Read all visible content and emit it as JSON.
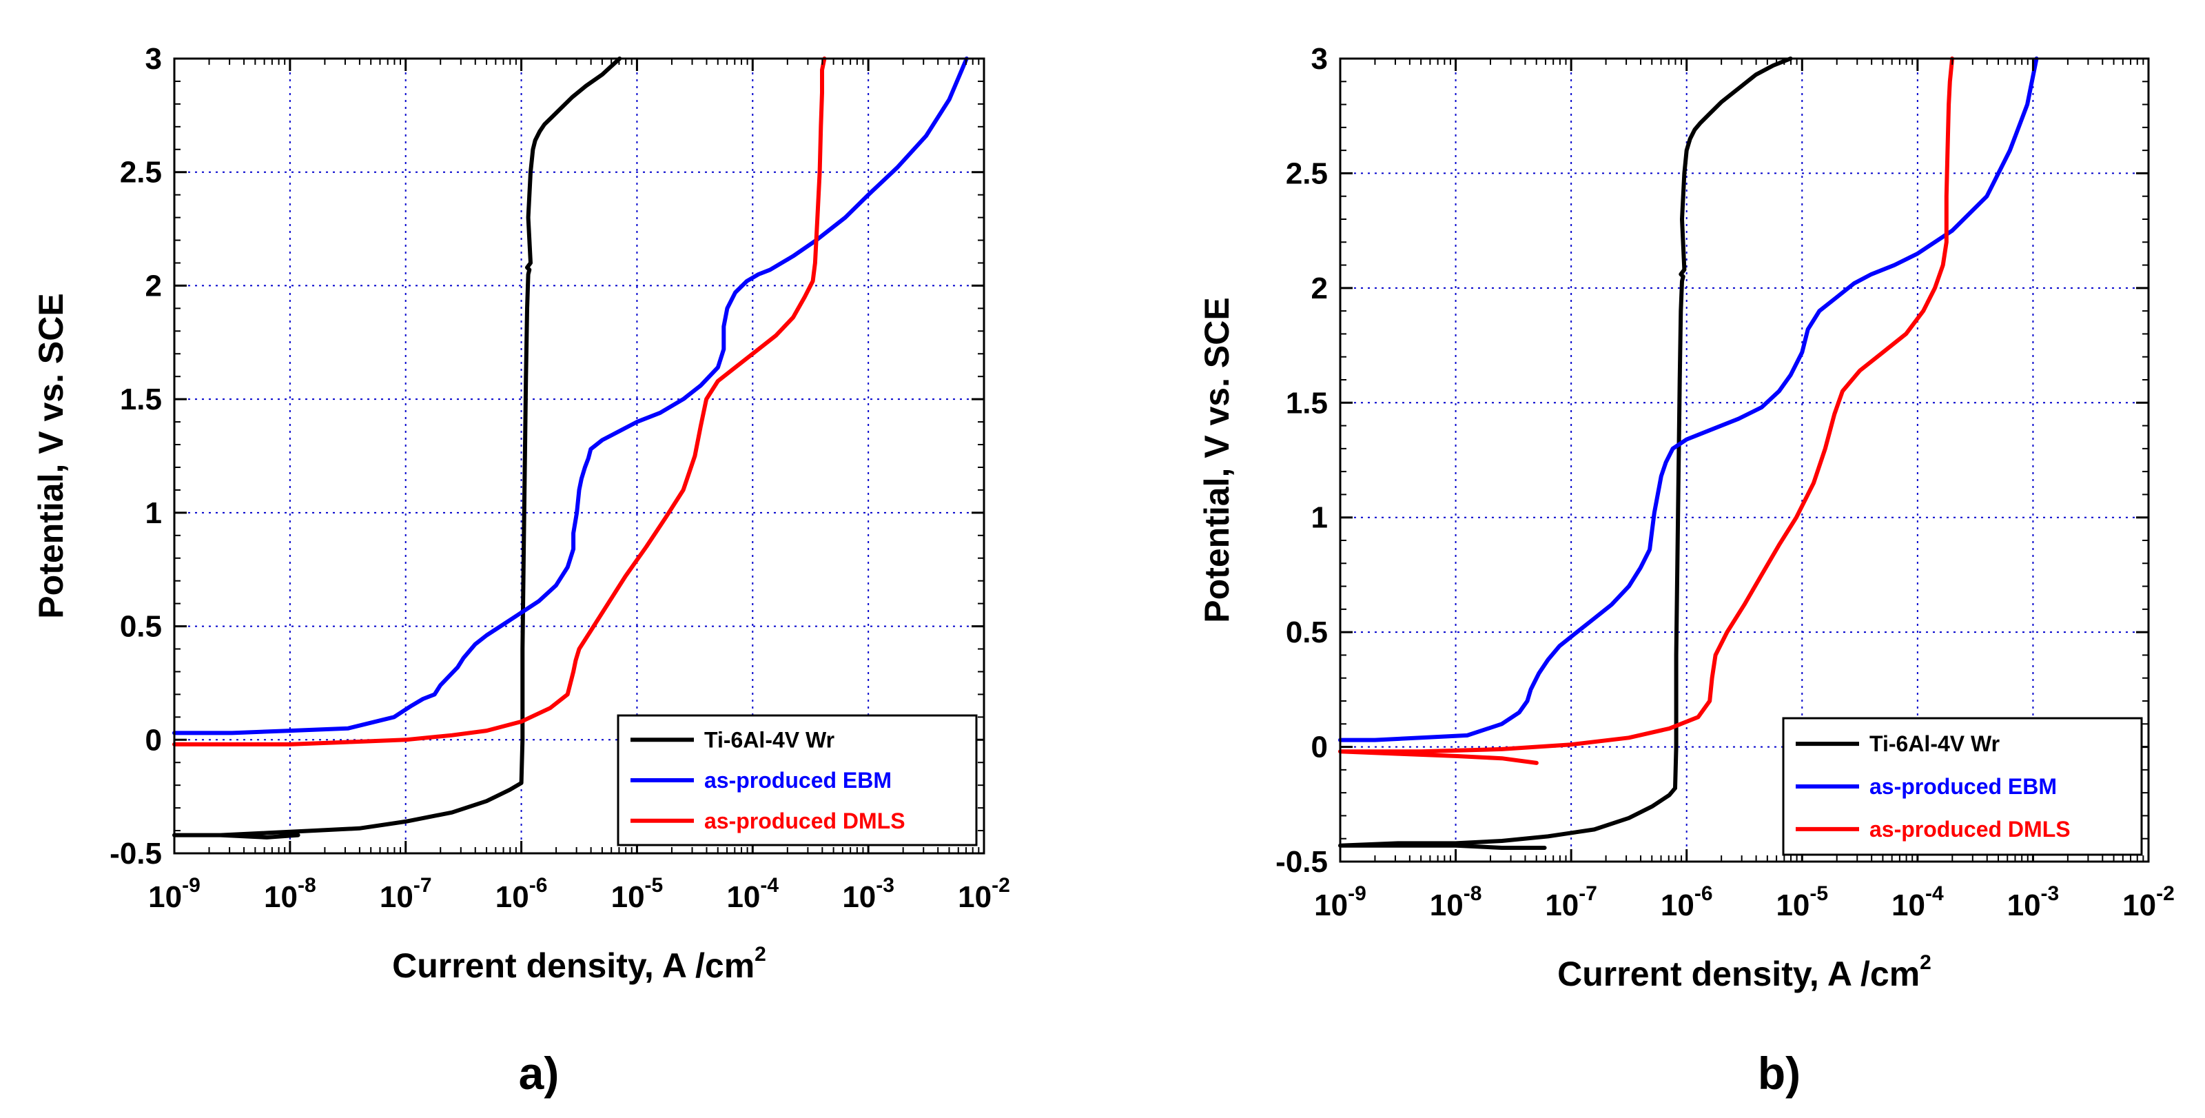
{
  "chart_data": [
    {
      "type": "line",
      "panel_label": "a)",
      "xlabel": "Current density, A /cm",
      "xlabel_sup": "2",
      "ylabel": "Potential, V vs. SCE",
      "xscale": "log",
      "xlim": [
        1e-09,
        0.01
      ],
      "ylim": [
        -0.5,
        3
      ],
      "x_ticks": [
        {
          "base": "10",
          "exp": "-9"
        },
        {
          "base": "10",
          "exp": "-8"
        },
        {
          "base": "10",
          "exp": "-7"
        },
        {
          "base": "10",
          "exp": "-6"
        },
        {
          "base": "10",
          "exp": "-5"
        },
        {
          "base": "10",
          "exp": "-4"
        },
        {
          "base": "10",
          "exp": "-3"
        },
        {
          "base": "10",
          "exp": "-2"
        }
      ],
      "y_ticks": [
        "-0.5",
        "0",
        "0.5",
        "1",
        "1.5",
        "2",
        "2.5",
        "3"
      ],
      "grid": true,
      "legend_position": "lower-right",
      "series": [
        {
          "name": "Ti-6Al-4V Wr",
          "color": "#000000",
          "log_x": [
            -7.93,
            -8.2,
            -8.6,
            -9.0,
            -8.6,
            -8.2,
            -7.8,
            -7.4,
            -7.0,
            -6.6,
            -6.3,
            -6.1,
            -6.0,
            -5.99,
            -5.99,
            -5.98,
            -5.97,
            -5.96,
            -5.95,
            -5.94,
            -5.93,
            -5.95,
            -5.92,
            -5.94,
            -5.92,
            -5.9,
            -5.88,
            -5.84,
            -5.8,
            -5.74,
            -5.66,
            -5.56,
            -5.44,
            -5.3,
            -5.15
          ],
          "y": [
            -0.42,
            -0.43,
            -0.42,
            -0.42,
            -0.42,
            -0.41,
            -0.4,
            -0.39,
            -0.36,
            -0.32,
            -0.27,
            -0.22,
            -0.19,
            0.0,
            0.4,
            0.8,
            1.2,
            1.6,
            1.9,
            2.05,
            2.07,
            2.08,
            2.1,
            2.3,
            2.5,
            2.6,
            2.64,
            2.68,
            2.71,
            2.74,
            2.78,
            2.83,
            2.88,
            2.93,
            3.0
          ]
        },
        {
          "name": "as-produced EBM",
          "color": "#0000ff",
          "log_x": [
            -9.0,
            -8.5,
            -8.0,
            -7.5,
            -7.1,
            -6.95,
            -6.85,
            -6.75,
            -6.7,
            -6.55,
            -6.5,
            -6.4,
            -6.3,
            -6.15,
            -6.0,
            -5.85,
            -5.7,
            -5.6,
            -5.55,
            -5.55,
            -5.52,
            -5.5,
            -5.48,
            -5.45,
            -5.42,
            -5.4,
            -5.3,
            -5.15,
            -5.0,
            -4.8,
            -4.6,
            -4.45,
            -4.3,
            -4.25,
            -4.25,
            -4.22,
            -4.15,
            -4.05,
            -3.95,
            -3.85,
            -3.65,
            -3.45,
            -3.2,
            -3.0,
            -2.75,
            -2.5,
            -2.3,
            -2.15
          ],
          "y": [
            0.03,
            0.03,
            0.04,
            0.05,
            0.1,
            0.15,
            0.18,
            0.2,
            0.24,
            0.32,
            0.36,
            0.42,
            0.46,
            0.51,
            0.56,
            0.61,
            0.68,
            0.76,
            0.84,
            0.91,
            1.0,
            1.1,
            1.15,
            1.2,
            1.24,
            1.28,
            1.32,
            1.36,
            1.4,
            1.44,
            1.5,
            1.56,
            1.64,
            1.72,
            1.82,
            1.9,
            1.97,
            2.02,
            2.05,
            2.07,
            2.13,
            2.2,
            2.3,
            2.4,
            2.52,
            2.66,
            2.82,
            3.0
          ]
        },
        {
          "name": "as-produced DMLS",
          "color": "#ff0000",
          "log_x": [
            -9.0,
            -8.5,
            -8.0,
            -7.5,
            -7.0,
            -6.6,
            -6.3,
            -6.0,
            -5.75,
            -5.6,
            -5.55,
            -5.53,
            -5.5,
            -5.4,
            -5.25,
            -5.1,
            -4.92,
            -4.75,
            -4.6,
            -4.5,
            -4.45,
            -4.4,
            -4.3,
            -4.15,
            -4.0,
            -3.8,
            -3.65,
            -3.55,
            -3.48,
            -3.46,
            -3.44,
            -3.42,
            -3.41,
            -3.4,
            -3.4,
            -3.38
          ],
          "y": [
            -0.02,
            -0.02,
            -0.02,
            -0.01,
            0.0,
            0.02,
            0.04,
            0.08,
            0.14,
            0.2,
            0.3,
            0.35,
            0.4,
            0.48,
            0.6,
            0.72,
            0.85,
            0.98,
            1.1,
            1.25,
            1.38,
            1.5,
            1.58,
            1.64,
            1.7,
            1.78,
            1.86,
            1.95,
            2.02,
            2.1,
            2.3,
            2.5,
            2.7,
            2.85,
            2.95,
            3.0
          ]
        }
      ]
    },
    {
      "type": "line",
      "panel_label": "b)",
      "xlabel": "Current density, A /cm",
      "xlabel_sup": "2",
      "ylabel": "Potential, V vs. SCE",
      "xscale": "log",
      "xlim": [
        1e-09,
        0.01
      ],
      "ylim": [
        -0.5,
        3
      ],
      "x_ticks": [
        {
          "base": "10",
          "exp": "-9"
        },
        {
          "base": "10",
          "exp": "-8"
        },
        {
          "base": "10",
          "exp": "-7"
        },
        {
          "base": "10",
          "exp": "-6"
        },
        {
          "base": "10",
          "exp": "-5"
        },
        {
          "base": "10",
          "exp": "-4"
        },
        {
          "base": "10",
          "exp": "-3"
        },
        {
          "base": "10",
          "exp": "-2"
        }
      ],
      "y_ticks": [
        "-0.5",
        "0",
        "0.5",
        "1",
        "1.5",
        "2",
        "2.5",
        "3"
      ],
      "grid": true,
      "legend_position": "lower-right",
      "series": [
        {
          "name": "Ti-6Al-4V Wr",
          "color": "#000000",
          "log_x": [
            -7.23,
            -7.6,
            -8.0,
            -8.5,
            -9.0,
            -8.5,
            -8.0,
            -7.6,
            -7.2,
            -6.8,
            -6.5,
            -6.3,
            -6.15,
            -6.1,
            -6.09,
            -6.09,
            -6.08,
            -6.07,
            -6.06,
            -6.05,
            -6.04,
            -6.03,
            -6.05,
            -6.02,
            -6.04,
            -6.02,
            -6.0,
            -5.97,
            -5.93,
            -5.88,
            -5.8,
            -5.7,
            -5.55,
            -5.4,
            -5.25,
            -5.1
          ],
          "y": [
            -0.44,
            -0.44,
            -0.43,
            -0.43,
            -0.43,
            -0.42,
            -0.42,
            -0.41,
            -0.39,
            -0.36,
            -0.31,
            -0.26,
            -0.21,
            -0.18,
            0.0,
            0.4,
            0.8,
            1.2,
            1.6,
            1.9,
            2.03,
            2.05,
            2.06,
            2.08,
            2.3,
            2.5,
            2.6,
            2.65,
            2.69,
            2.72,
            2.76,
            2.81,
            2.87,
            2.93,
            2.97,
            3.0
          ]
        },
        {
          "name": "as-produced EBM",
          "color": "#0000ff",
          "log_x": [
            -9.0,
            -8.7,
            -8.3,
            -7.9,
            -7.6,
            -7.45,
            -7.38,
            -7.35,
            -7.28,
            -7.2,
            -7.1,
            -6.95,
            -6.8,
            -6.65,
            -6.5,
            -6.4,
            -6.32,
            -6.3,
            -6.28,
            -6.25,
            -6.22,
            -6.18,
            -6.12,
            -6.0,
            -5.8,
            -5.55,
            -5.35,
            -5.2,
            -5.1,
            -5.0,
            -4.95,
            -4.85,
            -4.7,
            -4.55,
            -4.4,
            -4.2,
            -4.0,
            -3.7,
            -3.4,
            -3.2,
            -3.05,
            -2.97
          ],
          "y": [
            0.03,
            0.03,
            0.04,
            0.05,
            0.1,
            0.15,
            0.2,
            0.25,
            0.32,
            0.38,
            0.44,
            0.5,
            0.56,
            0.62,
            0.7,
            0.78,
            0.86,
            0.94,
            1.02,
            1.1,
            1.18,
            1.24,
            1.3,
            1.34,
            1.38,
            1.43,
            1.48,
            1.55,
            1.62,
            1.72,
            1.82,
            1.9,
            1.96,
            2.02,
            2.06,
            2.1,
            2.15,
            2.25,
            2.4,
            2.6,
            2.8,
            3.0
          ]
        },
        {
          "name": "as-produced DMLS",
          "color": "#ff0000",
          "log_x": [
            -7.3,
            -7.6,
            -8.0,
            -8.5,
            -9.0,
            -8.3,
            -7.6,
            -7.0,
            -6.5,
            -6.15,
            -5.9,
            -5.8,
            -5.78,
            -5.75,
            -5.65,
            -5.5,
            -5.35,
            -5.2,
            -5.05,
            -4.9,
            -4.8,
            -4.72,
            -4.65,
            -4.5,
            -4.3,
            -4.1,
            -3.95,
            -3.85,
            -3.78,
            -3.75,
            -3.75,
            -3.74,
            -3.73,
            -3.72,
            -3.7
          ],
          "y": [
            -0.07,
            -0.05,
            -0.04,
            -0.03,
            -0.02,
            -0.02,
            -0.01,
            0.01,
            0.04,
            0.08,
            0.13,
            0.2,
            0.3,
            0.4,
            0.5,
            0.62,
            0.75,
            0.88,
            1.0,
            1.15,
            1.3,
            1.45,
            1.55,
            1.64,
            1.72,
            1.8,
            1.9,
            2.0,
            2.1,
            2.2,
            2.4,
            2.6,
            2.8,
            2.9,
            3.0
          ]
        }
      ]
    }
  ]
}
